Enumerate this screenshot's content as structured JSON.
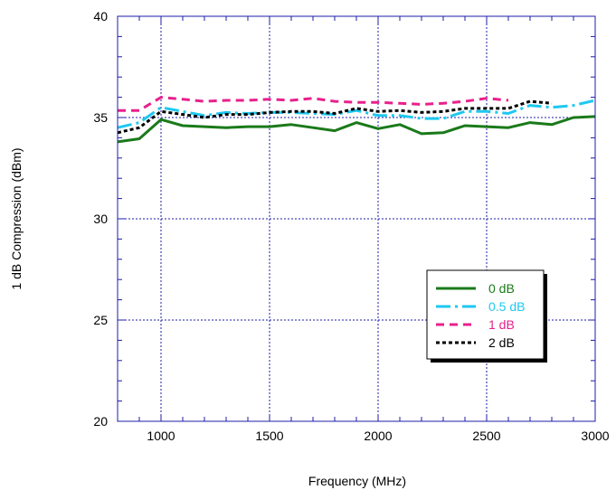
{
  "chart_data": {
    "type": "line",
    "title": "",
    "xlabel": "Frequency (MHz)",
    "ylabel": "1 dB Compression (dBm)",
    "xlim": [
      800,
      3000
    ],
    "ylim": [
      20,
      40
    ],
    "xticks": [
      1000,
      1500,
      2000,
      2500,
      3000
    ],
    "yticks": [
      20,
      25,
      30,
      35,
      40
    ],
    "grid": true,
    "legend_position": "lower-right",
    "series": [
      {
        "name": "0 dB",
        "color": "#1a7a1a",
        "dash": "solid",
        "x": [
          800,
          900,
          1000,
          1100,
          1200,
          1300,
          1400,
          1500,
          1600,
          1700,
          1800,
          1900,
          2000,
          2100,
          2200,
          2300,
          2400,
          2500,
          2600,
          2700,
          2800,
          2900,
          3000
        ],
        "y": [
          33.8,
          33.95,
          34.9,
          34.6,
          34.55,
          34.5,
          34.55,
          34.55,
          34.65,
          34.5,
          34.35,
          34.75,
          34.45,
          34.65,
          34.2,
          34.25,
          34.6,
          34.55,
          34.5,
          34.75,
          34.65,
          35.0,
          35.05
        ]
      },
      {
        "name": "0.5 dB",
        "color": "#1ec8f0",
        "dash": "longdash",
        "x": [
          800,
          900,
          1000,
          1100,
          1200,
          1300,
          1400,
          1500,
          1600,
          1700,
          1800,
          1900,
          2000,
          2100,
          2200,
          2300,
          2400,
          2500,
          2600,
          2700,
          2800,
          2900,
          3000
        ],
        "y": [
          34.5,
          34.75,
          35.5,
          35.3,
          35.1,
          35.25,
          35.2,
          35.25,
          35.25,
          35.2,
          35.15,
          35.35,
          35.1,
          35.1,
          34.95,
          34.95,
          35.3,
          35.3,
          35.2,
          35.6,
          35.5,
          35.6,
          35.85
        ]
      },
      {
        "name": "1 dB",
        "color": "#e8208c",
        "dash": "dash",
        "x": [
          800,
          900,
          1000,
          1100,
          1200,
          1300,
          1400,
          1500,
          1600,
          1700,
          1800,
          1900,
          2000,
          2100,
          2200,
          2300,
          2400,
          2500,
          2600
        ],
        "y": [
          35.35,
          35.35,
          36.0,
          35.9,
          35.8,
          35.85,
          35.85,
          35.9,
          35.85,
          35.95,
          35.8,
          35.75,
          35.75,
          35.7,
          35.65,
          35.7,
          35.8,
          35.95,
          35.85
        ]
      },
      {
        "name": "2 dB",
        "color": "#000000",
        "dash": "dot",
        "x": [
          800,
          900,
          1000,
          1100,
          1200,
          1300,
          1400,
          1500,
          1600,
          1700,
          1800,
          1900,
          2000,
          2100,
          2200,
          2300,
          2400,
          2500,
          2600,
          2700,
          2800
        ],
        "y": [
          34.25,
          34.5,
          35.3,
          35.15,
          35.0,
          35.15,
          35.15,
          35.25,
          35.3,
          35.3,
          35.2,
          35.45,
          35.3,
          35.35,
          35.25,
          35.3,
          35.45,
          35.45,
          35.45,
          35.8,
          35.7
        ]
      }
    ]
  }
}
